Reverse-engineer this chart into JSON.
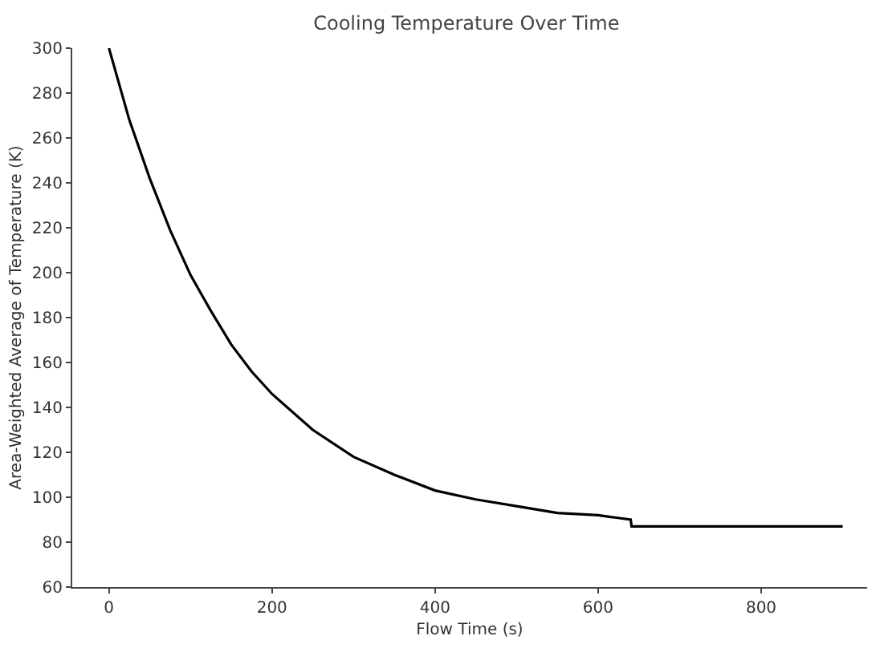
{
  "chart_data": {
    "type": "line",
    "title": "Cooling Temperature Over Time",
    "xlabel": "Flow Time (s)",
    "ylabel": "Area-Weighted Average of Temperature (K)",
    "x": [
      0,
      25,
      50,
      75,
      100,
      125,
      150,
      175,
      200,
      250,
      300,
      350,
      400,
      450,
      500,
      550,
      600,
      640,
      641,
      700,
      800,
      900
    ],
    "series": [
      {
        "color": "#000000",
        "values": [
          300,
          268,
          242,
          219,
          199,
          183,
          168,
          156,
          146,
          130,
          118,
          110,
          103,
          99,
          96,
          93,
          92,
          90,
          87,
          87,
          87,
          87
        ]
      }
    ],
    "xlim": [
      -45,
      930
    ],
    "xticks": [
      0,
      200,
      400,
      600,
      800
    ],
    "ylim": [
      60,
      300
    ],
    "yticks": [
      60,
      80,
      100,
      120,
      140,
      160,
      180,
      200,
      220,
      240,
      260,
      280,
      300
    ],
    "marker": "none",
    "line_style": "solid"
  }
}
